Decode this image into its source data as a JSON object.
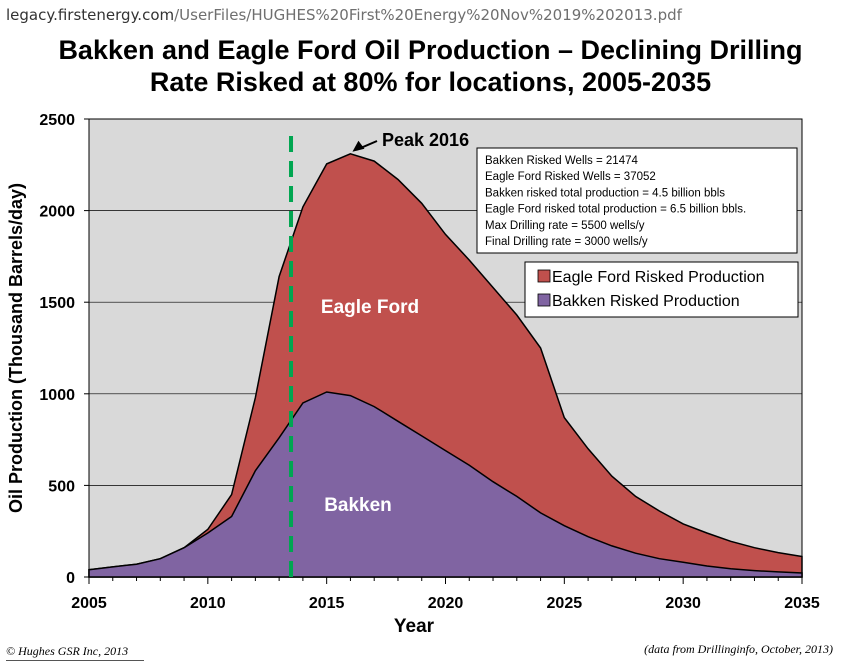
{
  "browser": {
    "url_host": "legacy.firstenergy.com",
    "url_path": "/UserFiles/HUGHES%20First%20Energy%20Nov%2019%202013.pdf"
  },
  "colors": {
    "plot_bg": "#d9d9d9",
    "eagle_ford": "#c0504d",
    "bakken": "#8064a2",
    "marker_line": "#00a651"
  },
  "chart_data": {
    "type": "area",
    "title": "Bakken and Eagle Ford Oil Production – Declining Drilling Rate Risked at 80% for locations, 2005-2035",
    "title_line1": "Bakken and Eagle Ford Oil Production – Declining Drilling",
    "title_line2": "Rate Risked at 80% for locations, 2005-2035",
    "xlabel": "Year",
    "ylabel": "Oil Production (Thousand Barrels/day)",
    "xlim": [
      2005,
      2035
    ],
    "ylim": [
      0,
      2500
    ],
    "xticks": [
      2005,
      2010,
      2015,
      2020,
      2025,
      2030,
      2035
    ],
    "yticks": [
      0,
      500,
      1000,
      1500,
      2000,
      2500
    ],
    "grid": "horizontal",
    "stacked": true,
    "legend_position": "right",
    "x": [
      2005,
      2006,
      2007,
      2008,
      2009,
      2010,
      2011,
      2012,
      2013,
      2014,
      2015,
      2016,
      2017,
      2018,
      2019,
      2020,
      2021,
      2022,
      2023,
      2024,
      2025,
      2026,
      2027,
      2028,
      2029,
      2030,
      2031,
      2032,
      2033,
      2034,
      2035
    ],
    "series": [
      {
        "name": "Bakken Risked Production",
        "values": [
          40,
          55,
          70,
          100,
          160,
          240,
          330,
          580,
          760,
          950,
          1010,
          990,
          930,
          850,
          770,
          690,
          610,
          520,
          440,
          350,
          280,
          220,
          170,
          130,
          100,
          80,
          60,
          45,
          35,
          28,
          22
        ]
      },
      {
        "name": "Eagle Ford Risked Production",
        "values": [
          0,
          0,
          0,
          0,
          0,
          20,
          120,
          400,
          880,
          1070,
          1245,
          1320,
          1340,
          1320,
          1270,
          1180,
          1120,
          1060,
          990,
          900,
          590,
          480,
          380,
          310,
          260,
          210,
          180,
          150,
          125,
          105,
          90
        ]
      }
    ],
    "area_labels": {
      "eagle_ford": "Eagle Ford",
      "bakken": "Bakken"
    },
    "annotations": {
      "peak_label": "Peak 2016",
      "peak_year": 2016,
      "vertical_line_year": 2013.5,
      "info_box": [
        "Bakken Risked Wells = 21474",
        "Eagle Ford Risked Wells = 37052",
        "Bakken risked total production = 4.5 billion bbls",
        "Eagle Ford risked total production = 6.5 billion bbls.",
        "Max Drilling rate = 5500 wells/y",
        "Final Drilling rate = 3000 wells/y"
      ]
    }
  },
  "footer": {
    "left": "© Hughes GSR Inc, 2013",
    "right": "(data from Drillinginfo, October, 2013)"
  }
}
